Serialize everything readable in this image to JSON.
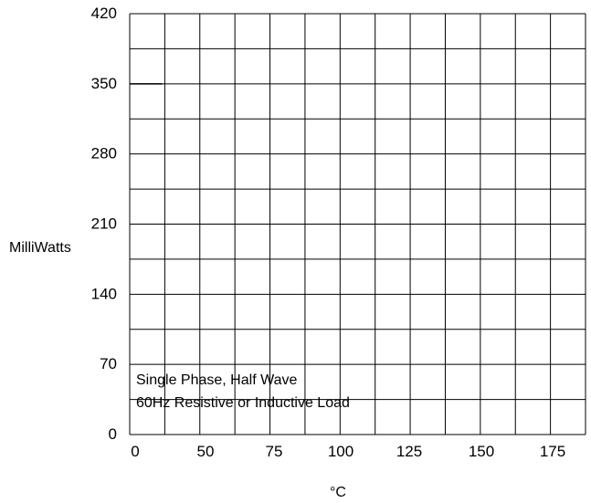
{
  "chart_data": {
    "type": "line",
    "title": "",
    "xlabel": "°C",
    "ylabel": "MilliWatts",
    "xlim": [
      0,
      175
    ],
    "ylim": [
      0,
      420
    ],
    "x_tick_labels": [
      "0",
      "50",
      "75",
      "100",
      "125",
      "150",
      "175"
    ],
    "x_tick_values": [
      0,
      50,
      75,
      100,
      125,
      150,
      175
    ],
    "y_tick_labels": [
      "0",
      "70",
      "140",
      "210",
      "280",
      "350",
      "420"
    ],
    "y_tick_values": [
      0,
      70,
      140,
      210,
      280,
      350,
      420
    ],
    "grid": true,
    "annotations": [
      "Single Phase, Half Wave",
      "60Hz Resistive or Inductive Load"
    ],
    "series": [
      {
        "x": [
          0,
          12.5
        ],
        "values": [
          350,
          350
        ]
      }
    ]
  }
}
